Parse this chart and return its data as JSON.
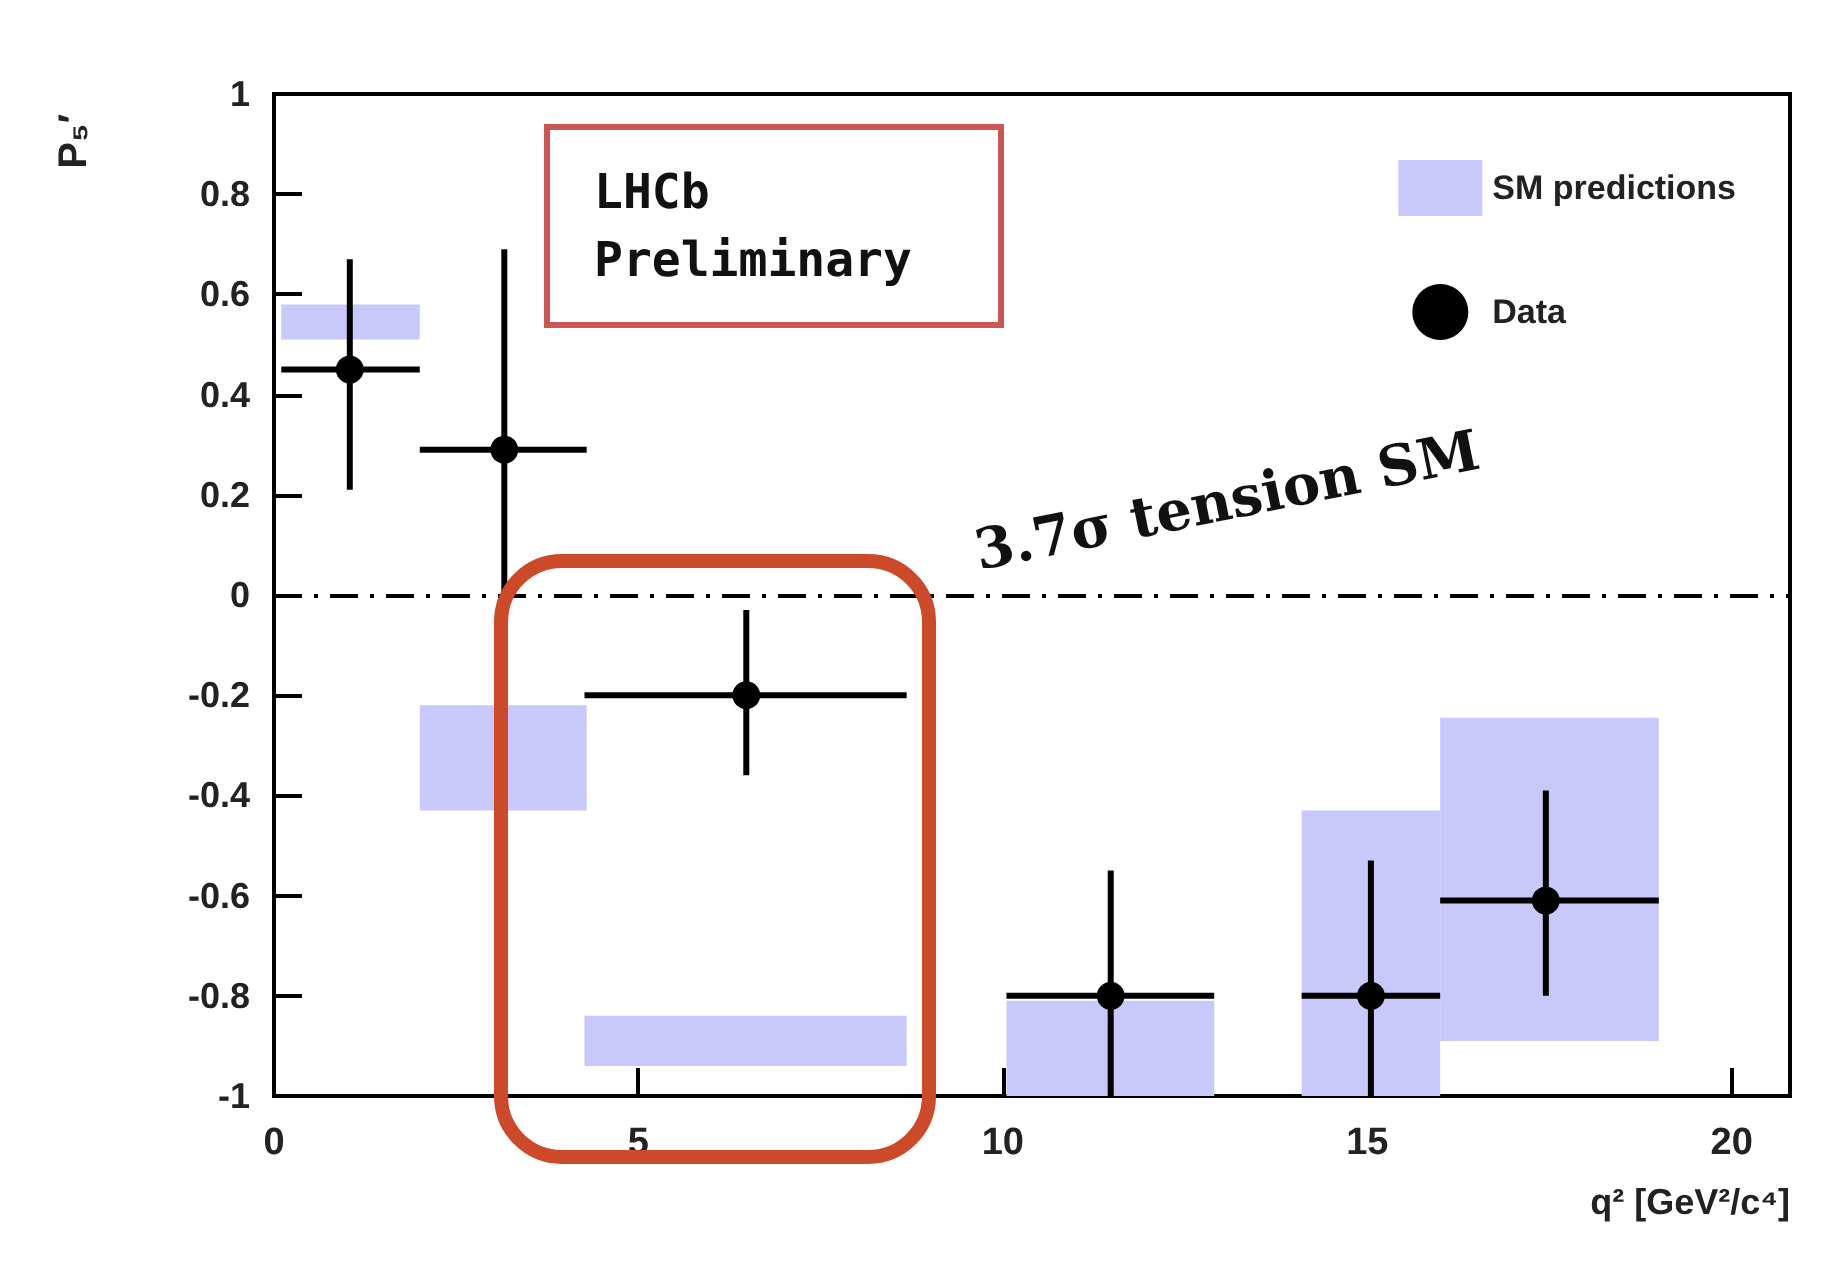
{
  "chart_data": {
    "type": "scatter",
    "xlabel": "q² [GeV²/c⁴]",
    "ylabel": "P₅′",
    "annotations": [
      "LHCb Preliminary",
      "3.7σ tension SM"
    ],
    "xlim": [
      0,
      20.8
    ],
    "xticks": [
      0,
      5,
      10,
      15,
      20
    ],
    "ylim": [
      -1,
      1
    ],
    "yticks": [
      -1,
      -0.8,
      -0.6,
      -0.4,
      -0.2,
      0,
      0.2,
      0.4,
      0.6,
      0.8,
      1
    ],
    "legend": "top right",
    "marker": "circle",
    "ref_lines": [
      {
        "axis": "y",
        "value": 0,
        "label": null,
        "color": "#000000",
        "line_style": "dashed"
      }
    ],
    "series": [
      {
        "name": "SM predictions",
        "type": "bar",
        "color": "#c8c8fa",
        "x": [
          1.07,
          3.13,
          6.46,
          11.48,
          15.08,
          17.48
        ],
        "base": [
          0.51,
          -0.43,
          -0.94,
          -1,
          -1,
          -0.89
        ],
        "values": [
          0.07,
          0.21,
          0.1,
          0.19,
          0.57,
          0.645
        ]
      },
      {
        "name": "Data",
        "color": "#000000",
        "x": [
          1.04,
          3.16,
          6.48,
          11.48,
          15.05,
          17.45
        ],
        "values": [
          0.45,
          0.29,
          -0.2,
          -0.8,
          -0.8,
          -0.61
        ],
        "errors": [
          [
            0.21,
            0.67
          ],
          [
            -0.1,
            0.69
          ],
          [
            -0.36,
            -0.03
          ],
          [
            -1,
            -0.55
          ],
          [
            -1,
            -0.53
          ],
          [
            -0.8,
            -0.39
          ]
        ],
        "xerrors": [
          [
            0.1,
            2
          ],
          [
            2,
            4.29
          ],
          [
            4.26,
            8.68
          ],
          [
            10.05,
            12.9
          ],
          [
            14.1,
            16
          ],
          [
            16,
            19
          ]
        ]
      }
    ]
  }
}
